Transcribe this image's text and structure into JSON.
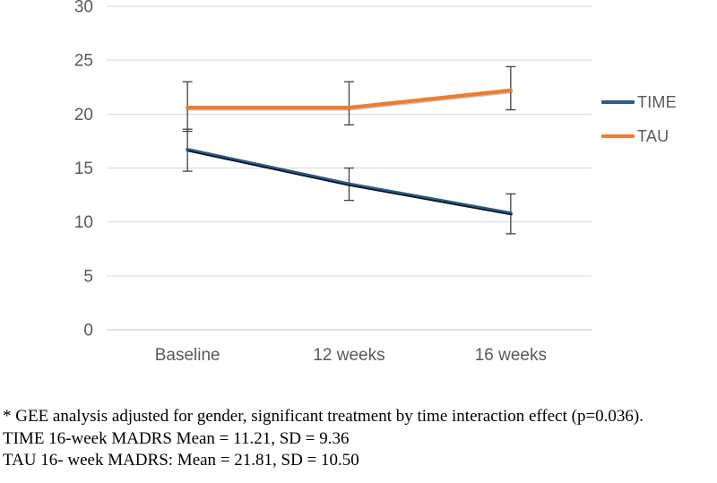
{
  "chart_data": {
    "type": "line",
    "title": "",
    "xlabel": "",
    "ylabel": "",
    "categories": [
      "Baseline",
      "12 weeks",
      "16 weeks"
    ],
    "series": [
      {
        "name": "TIME",
        "color": "#2A5A87",
        "values": [
          16.7,
          13.5,
          10.8
        ],
        "error_low": [
          14.7,
          12.0,
          8.9
        ],
        "error_high": [
          18.6,
          15.0,
          12.6
        ]
      },
      {
        "name": "TAU",
        "color": "#ED7D31",
        "values": [
          20.6,
          20.6,
          22.2
        ],
        "error_low": [
          18.4,
          19.0,
          20.4
        ],
        "error_high": [
          23.0,
          23.0,
          24.4
        ]
      }
    ],
    "ylim": [
      0,
      30
    ],
    "ytick_step": 5,
    "grid": true,
    "legend_position": "right",
    "grid_color": "#D9D9D9",
    "axis_line_color": "#BFBFBF",
    "tick_label_color": "#595959",
    "error_bar_color": "#404040"
  },
  "caption": {
    "lines": [
      "* GEE analysis adjusted for gender, significant treatment by time interaction effect (p=0.036).",
      "TIME 16-week MADRS Mean = 11.21, SD = 9.36",
      "TAU 16- week MADRS: Mean = 21.81, SD = 10.50"
    ]
  }
}
